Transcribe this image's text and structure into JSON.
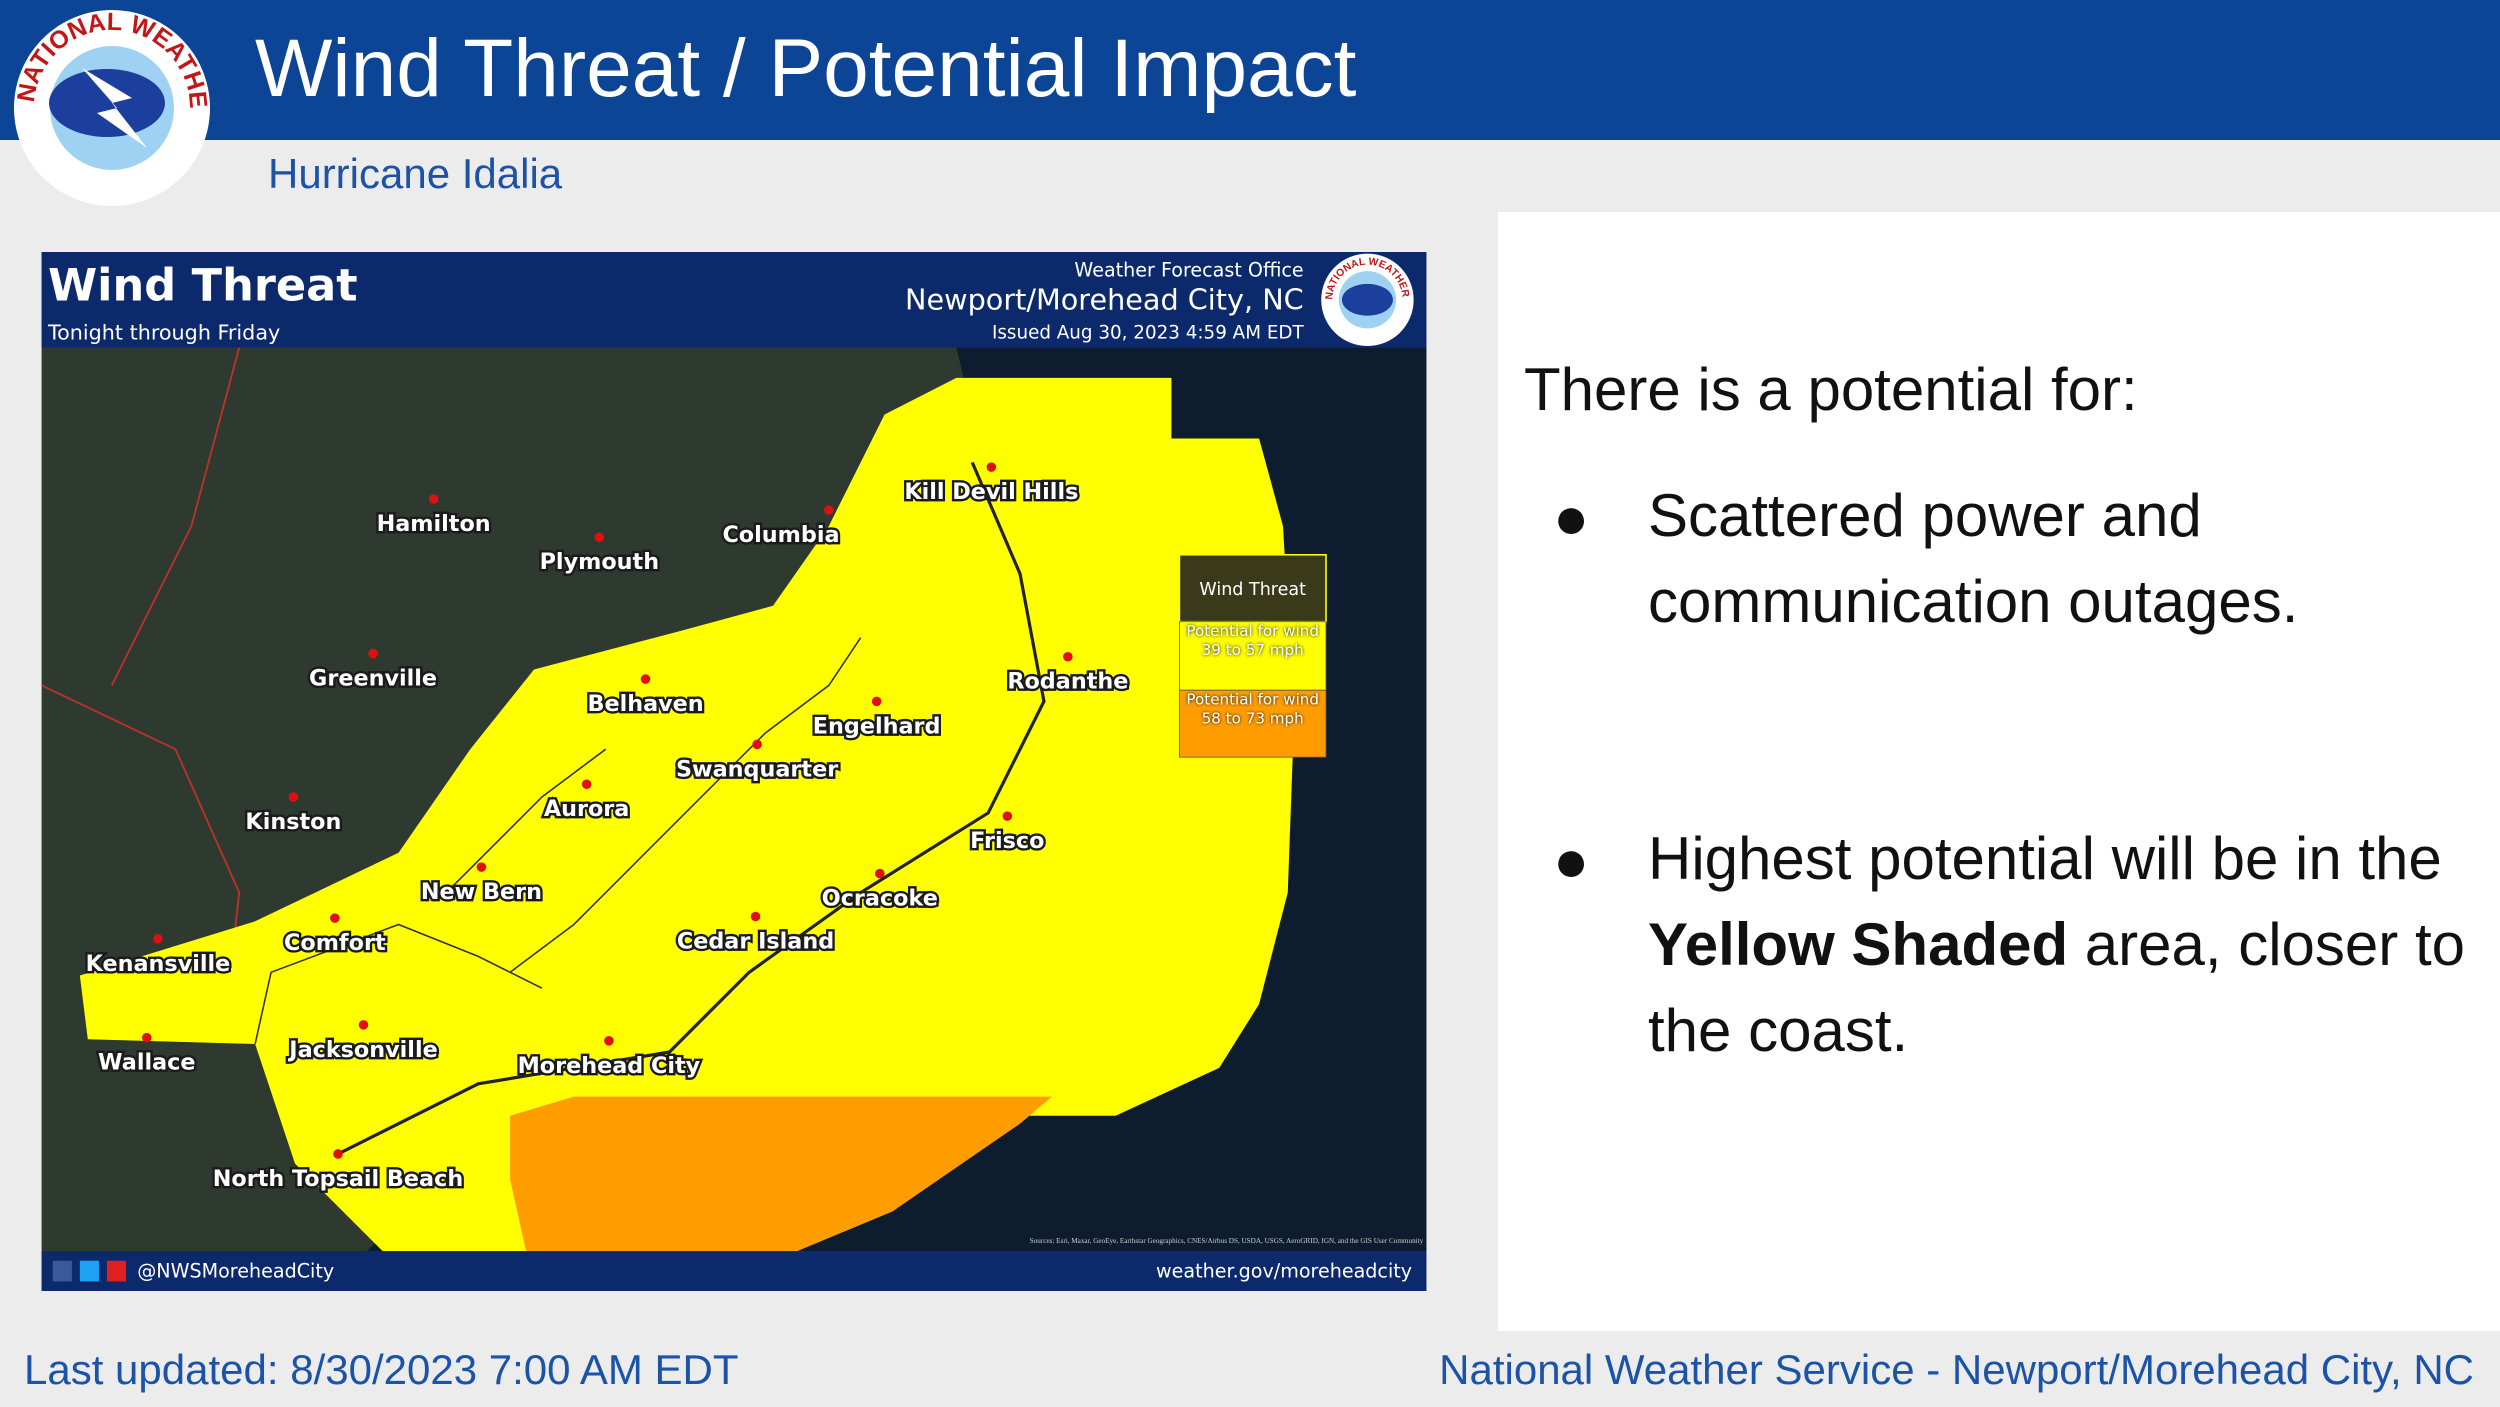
{
  "header": {
    "title": "Wind Threat / Potential Impact",
    "subtitle": "Hurricane Idalia",
    "logo_text": "NATIONAL WEATHER SERVICE"
  },
  "map": {
    "title": "Wind Threat",
    "subtitle": "Tonight through Friday",
    "office_label": "Weather Forecast Office",
    "office": "Newport/Morehead City, NC",
    "issued": "Issued Aug 30, 2023 4:59 AM EDT",
    "cities": [
      "Hamilton",
      "Plymouth",
      "Columbia",
      "Kill Devil Hills",
      "Greenville",
      "Belhaven",
      "Engelhard",
      "Rodanthe",
      "Swanquarter",
      "Aurora",
      "Kinston",
      "Frisco",
      "New Bern",
      "Ocracoke",
      "Comfort",
      "Cedar Island",
      "Kenansville",
      "Jacksonville",
      "Wallace",
      "Morehead City",
      "North Topsail Beach"
    ],
    "legend": {
      "title": "Wind Threat",
      "items": [
        "Potential for wind 39 to 57 mph",
        "Potential for wind 58 to 73 mph"
      ]
    },
    "attribution": "Sources: Esri, Maxar, GeoEye, Earthstar Geographics, CNES/Airbus DS, USDA, USGS, AeroGRID, IGN, and the GIS User Community",
    "social": "@NWSMoreheadCity",
    "website": "weather.gov/moreheadcity"
  },
  "panel": {
    "intro": "There is a potential for:",
    "bullets": [
      {
        "text": "Scattered power and communication outages."
      },
      {
        "before": "Highest potential will be in the ",
        "bold": "Yellow Shaded",
        "after": " area, closer to the coast."
      }
    ]
  },
  "footer": {
    "updated": "Last updated: 8/30/2023 7:00 AM EDT",
    "office": "National Weather Service - Newport/Morehead City, NC"
  }
}
